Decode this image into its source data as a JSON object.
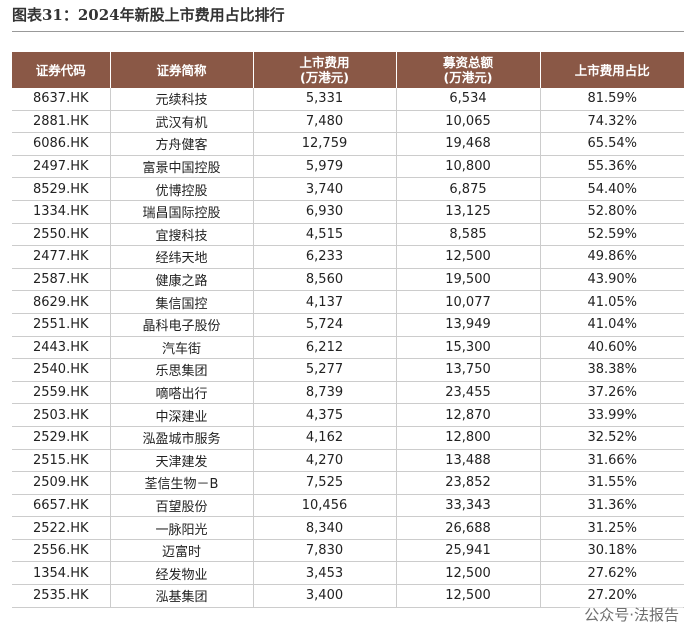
{
  "title": "图表31：2024年新股上市费用占比排行",
  "table": {
    "header": [
      [
        "证券代码"
      ],
      [
        "证券简称"
      ],
      [
        "上市费用",
        "(万港元)"
      ],
      [
        "募资总额",
        "(万港元)"
      ],
      [
        "上市费用占比"
      ]
    ],
    "rows": [
      [
        "8637.HK",
        "元续科技",
        "5,331",
        "6,534",
        "81.59%"
      ],
      [
        "2881.HK",
        "武汉有机",
        "7,480",
        "10,065",
        "74.32%"
      ],
      [
        "6086.HK",
        "方舟健客",
        "12,759",
        "19,468",
        "65.54%"
      ],
      [
        "2497.HK",
        "富景中国控股",
        "5,979",
        "10,800",
        "55.36%"
      ],
      [
        "8529.HK",
        "优博控股",
        "3,740",
        "6,875",
        "54.40%"
      ],
      [
        "1334.HK",
        "瑞昌国际控股",
        "6,930",
        "13,125",
        "52.80%"
      ],
      [
        "2550.HK",
        "宜搜科技",
        "4,515",
        "8,585",
        "52.59%"
      ],
      [
        "2477.HK",
        "经纬天地",
        "6,233",
        "12,500",
        "49.86%"
      ],
      [
        "2587.HK",
        "健康之路",
        "8,560",
        "19,500",
        "43.90%"
      ],
      [
        "8629.HK",
        "集信国控",
        "4,137",
        "10,077",
        "41.05%"
      ],
      [
        "2551.HK",
        "晶科电子股份",
        "5,724",
        "13,949",
        "41.04%"
      ],
      [
        "2443.HK",
        "汽车街",
        "6,212",
        "15,300",
        "40.60%"
      ],
      [
        "2540.HK",
        "乐思集团",
        "5,277",
        "13,750",
        "38.38%"
      ],
      [
        "2559.HK",
        "嘀嗒出行",
        "8,739",
        "23,455",
        "37.26%"
      ],
      [
        "2503.HK",
        "中深建业",
        "4,375",
        "12,870",
        "33.99%"
      ],
      [
        "2529.HK",
        "泓盈城市服务",
        "4,162",
        "12,800",
        "32.52%"
      ],
      [
        "2515.HK",
        "天津建发",
        "4,270",
        "13,488",
        "31.66%"
      ],
      [
        "2509.HK",
        "荃信生物－B",
        "7,525",
        "23,852",
        "31.55%"
      ],
      [
        "6657.HK",
        "百望股份",
        "10,456",
        "33,343",
        "31.36%"
      ],
      [
        "2522.HK",
        "一脉阳光",
        "8,340",
        "26,688",
        "31.25%"
      ],
      [
        "2556.HK",
        "迈富时",
        "7,830",
        "25,941",
        "30.18%"
      ],
      [
        "1354.HK",
        "经发物业",
        "3,453",
        "12,500",
        "27.62%"
      ],
      [
        "2535.HK",
        "泓基集团",
        "3,400",
        "12,500",
        "27.20%"
      ]
    ]
  },
  "watermark": "公众号·法报告"
}
